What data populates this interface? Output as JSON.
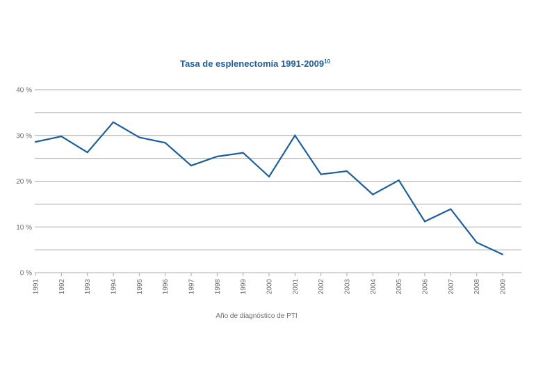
{
  "chart_data": {
    "type": "line",
    "title": "Tasa de esplenectomía 1991-2009",
    "title_superscript": "10",
    "xlabel": "Año de diagnóstico de PTI",
    "ylabel": "",
    "ylim": [
      0,
      40
    ],
    "grid": true,
    "y_ticks": [
      {
        "value": 0,
        "label": "0 %"
      },
      {
        "value": 10,
        "label": "10 %"
      },
      {
        "value": 20,
        "label": "20 %"
      },
      {
        "value": 30,
        "label": "30 %"
      },
      {
        "value": 40,
        "label": "40 %"
      }
    ],
    "categories": [
      "1991",
      "1992",
      "1993",
      "1994",
      "1995",
      "1996",
      "1997",
      "1998",
      "1999",
      "2000",
      "2001",
      "2002",
      "2003",
      "2004",
      "2005",
      "2006",
      "2007",
      "2008",
      "2009"
    ],
    "series": [
      {
        "name": "Tasa de esplenectomía",
        "color": "#1f5f99",
        "values": [
          28.6,
          29.8,
          26.3,
          32.9,
          29.6,
          28.4,
          23.4,
          25.4,
          26.2,
          21.0,
          30.0,
          21.5,
          22.2,
          17.1,
          20.2,
          11.2,
          13.9,
          6.6,
          4.0
        ]
      }
    ]
  }
}
